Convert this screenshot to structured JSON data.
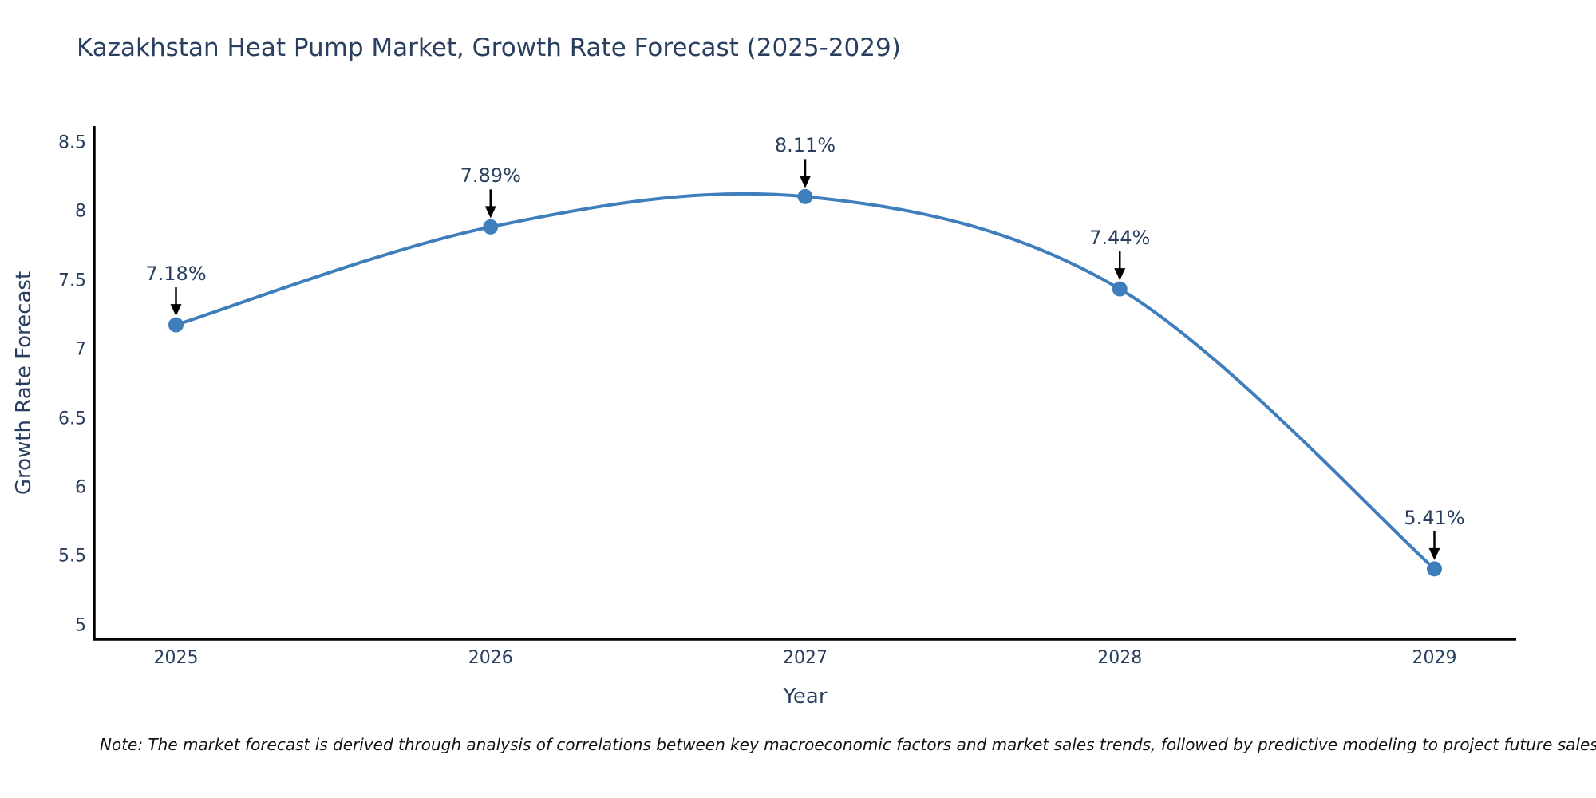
{
  "chart_data": {
    "type": "line",
    "title": "Kazakhstan Heat Pump Market, Growth Rate Forecast (2025-2029)",
    "xlabel": "Year",
    "ylabel": "Growth Rate Forecast",
    "x": [
      2025,
      2026,
      2027,
      2028,
      2029
    ],
    "values": [
      7.18,
      7.89,
      8.11,
      7.44,
      5.41
    ],
    "point_labels": [
      "7.18%",
      "7.89%",
      "8.11%",
      "7.44%",
      "5.41%"
    ],
    "xtick_labels": [
      "2025",
      "2026",
      "2027",
      "2028",
      "2029"
    ],
    "ytick_values": [
      5,
      5.5,
      6,
      6.5,
      7,
      7.5,
      8,
      8.5
    ],
    "ytick_labels": [
      "5",
      "5.5",
      "6",
      "6.5",
      "7",
      "7.5",
      "8",
      "8.5"
    ],
    "xlim": [
      2024.74,
      2029.26
    ],
    "ylim": [
      4.9,
      8.61
    ],
    "grid": false,
    "legend": "none",
    "line_shape": "spline",
    "line_color": "#3E7EBC",
    "marker_color": "#3E7EBC",
    "arrow_color": "#000000",
    "axis_line_color": "#000000",
    "text_color": "#2a3f5f"
  },
  "note": {
    "text": "Note: The market forecast is derived through analysis of correlations between key macroeconomic factors and market sales trends, followed by predictive modeling to project future sales"
  }
}
